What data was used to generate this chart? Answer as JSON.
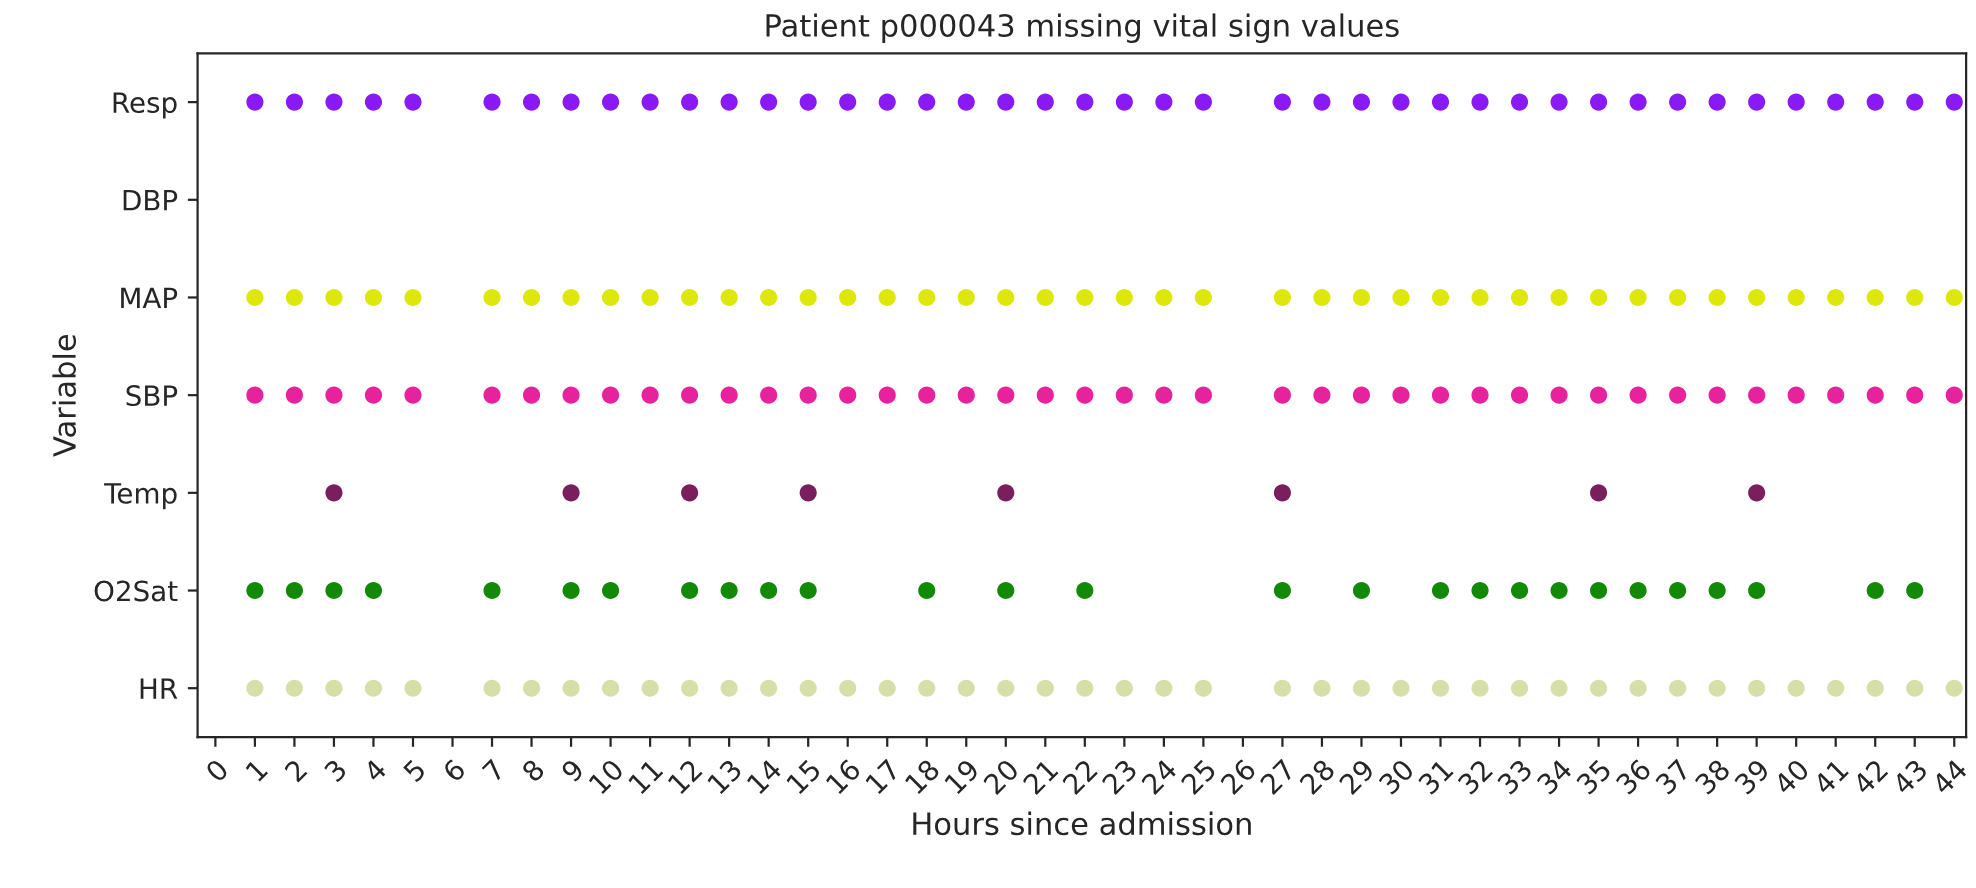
{
  "chart_data": {
    "type": "scatter",
    "orientation": "horizontal",
    "title": "Patient p000043 missing vital sign values",
    "xlabel": "Hours since admission",
    "ylabel": "Variable",
    "categories": [
      "Resp",
      "DBP",
      "MAP",
      "SBP",
      "Temp",
      "O2Sat",
      "HR"
    ],
    "series": [
      {
        "colors": [
          "#8a1af5",
          null,
          "#dde80a",
          "#e8229c",
          "#7a1f5e",
          "#138a07",
          "#d6dfa8"
        ],
        "values": [
          1,
          null,
          1,
          1,
          3,
          1,
          1
        ]
      },
      {
        "colors": [
          "#8a1af5",
          null,
          "#dde80a",
          "#e8229c",
          "#7a1f5e",
          "#138a07",
          "#d6dfa8"
        ],
        "values": [
          2,
          null,
          2,
          2,
          9,
          2,
          2
        ]
      },
      {
        "colors": [
          "#8a1af5",
          null,
          "#dde80a",
          "#e8229c",
          "#7a1f5e",
          "#138a07",
          "#d6dfa8"
        ],
        "values": [
          3,
          null,
          3,
          3,
          12,
          3,
          3
        ]
      },
      {
        "colors": [
          "#8a1af5",
          null,
          "#dde80a",
          "#e8229c",
          "#7a1f5e",
          "#138a07",
          "#d6dfa8"
        ],
        "values": [
          4,
          null,
          4,
          4,
          15,
          4,
          4
        ]
      },
      {
        "colors": [
          "#8a1af5",
          null,
          "#dde80a",
          "#e8229c",
          "#7a1f5e",
          "#138a07",
          "#d6dfa8"
        ],
        "values": [
          5,
          null,
          5,
          5,
          20,
          7,
          5
        ]
      },
      {
        "colors": [
          "#8a1af5",
          null,
          "#dde80a",
          "#e8229c",
          "#7a1f5e",
          "#138a07",
          "#d6dfa8"
        ],
        "values": [
          7,
          null,
          7,
          7,
          27,
          9,
          7
        ]
      },
      {
        "colors": [
          "#8a1af5",
          null,
          "#dde80a",
          "#e8229c",
          "#7a1f5e",
          "#138a07",
          "#d6dfa8"
        ],
        "values": [
          8,
          null,
          8,
          8,
          35,
          10,
          8
        ]
      },
      {
        "colors": [
          "#8a1af5",
          null,
          "#dde80a",
          "#e8229c",
          "#7a1f5e",
          "#138a07",
          "#d6dfa8"
        ],
        "values": [
          9,
          null,
          9,
          9,
          39,
          12,
          9
        ]
      },
      {
        "colors": [
          "#8a1af5",
          null,
          "#dde80a",
          "#e8229c",
          null,
          "#138a07",
          "#d6dfa8"
        ],
        "values": [
          10,
          null,
          10,
          10,
          null,
          13,
          10
        ]
      },
      {
        "colors": [
          "#8a1af5",
          null,
          "#dde80a",
          "#e8229c",
          null,
          "#138a07",
          "#d6dfa8"
        ],
        "values": [
          11,
          null,
          11,
          11,
          null,
          14,
          11
        ]
      },
      {
        "colors": [
          "#8a1af5",
          null,
          "#dde80a",
          "#e8229c",
          null,
          "#138a07",
          "#d6dfa8"
        ],
        "values": [
          12,
          null,
          12,
          12,
          null,
          15,
          12
        ]
      },
      {
        "colors": [
          "#8a1af5",
          null,
          "#dde80a",
          "#e8229c",
          null,
          "#138a07",
          "#d6dfa8"
        ],
        "values": [
          13,
          null,
          13,
          13,
          null,
          18,
          13
        ]
      },
      {
        "colors": [
          "#8a1af5",
          null,
          "#dde80a",
          "#e8229c",
          null,
          "#138a07",
          "#d6dfa8"
        ],
        "values": [
          14,
          null,
          14,
          14,
          null,
          20,
          14
        ]
      },
      {
        "colors": [
          "#8a1af5",
          null,
          "#dde80a",
          "#e8229c",
          null,
          "#138a07",
          "#d6dfa8"
        ],
        "values": [
          15,
          null,
          15,
          15,
          null,
          22,
          15
        ]
      },
      {
        "colors": [
          "#8a1af5",
          null,
          "#dde80a",
          "#e8229c",
          null,
          "#138a07",
          "#d6dfa8"
        ],
        "values": [
          16,
          null,
          16,
          16,
          null,
          27,
          16
        ]
      },
      {
        "colors": [
          "#8a1af5",
          null,
          "#dde80a",
          "#e8229c",
          null,
          "#138a07",
          "#d6dfa8"
        ],
        "values": [
          17,
          null,
          17,
          17,
          null,
          29,
          17
        ]
      },
      {
        "colors": [
          "#8a1af5",
          null,
          "#dde80a",
          "#e8229c",
          null,
          "#138a07",
          "#d6dfa8"
        ],
        "values": [
          18,
          null,
          18,
          18,
          null,
          31,
          18
        ]
      },
      {
        "colors": [
          "#8a1af5",
          null,
          "#dde80a",
          "#e8229c",
          null,
          "#138a07",
          "#d6dfa8"
        ],
        "values": [
          19,
          null,
          19,
          19,
          null,
          32,
          19
        ]
      },
      {
        "colors": [
          "#8a1af5",
          null,
          "#dde80a",
          "#e8229c",
          null,
          "#138a07",
          "#d6dfa8"
        ],
        "values": [
          20,
          null,
          20,
          20,
          null,
          33,
          20
        ]
      },
      {
        "colors": [
          "#8a1af5",
          null,
          "#dde80a",
          "#e8229c",
          null,
          "#138a07",
          "#d6dfa8"
        ],
        "values": [
          21,
          null,
          21,
          21,
          null,
          34,
          21
        ]
      },
      {
        "colors": [
          "#8a1af5",
          null,
          "#dde80a",
          "#e8229c",
          null,
          "#138a07",
          "#d6dfa8"
        ],
        "values": [
          22,
          null,
          22,
          22,
          null,
          35,
          22
        ]
      },
      {
        "colors": [
          "#8a1af5",
          null,
          "#dde80a",
          "#e8229c",
          null,
          "#138a07",
          "#d6dfa8"
        ],
        "values": [
          23,
          null,
          23,
          23,
          null,
          36,
          23
        ]
      },
      {
        "colors": [
          "#8a1af5",
          null,
          "#dde80a",
          "#e8229c",
          null,
          "#138a07",
          "#d6dfa8"
        ],
        "values": [
          24,
          null,
          24,
          24,
          null,
          37,
          24
        ]
      },
      {
        "colors": [
          "#8a1af5",
          null,
          "#dde80a",
          "#e8229c",
          null,
          "#138a07",
          "#d6dfa8"
        ],
        "values": [
          25,
          null,
          25,
          25,
          null,
          38,
          25
        ]
      },
      {
        "colors": [
          "#8a1af5",
          null,
          "#dde80a",
          "#e8229c",
          null,
          "#138a07",
          "#d6dfa8"
        ],
        "values": [
          27,
          null,
          27,
          27,
          null,
          39,
          27
        ]
      },
      {
        "colors": [
          "#8a1af5",
          null,
          "#dde80a",
          "#e8229c",
          null,
          "#138a07",
          "#d6dfa8"
        ],
        "values": [
          28,
          null,
          28,
          28,
          null,
          42,
          28
        ]
      },
      {
        "colors": [
          "#8a1af5",
          null,
          "#dde80a",
          "#e8229c",
          null,
          "#138a07",
          "#d6dfa8"
        ],
        "values": [
          29,
          null,
          29,
          29,
          null,
          43,
          29
        ]
      },
      {
        "colors": [
          "#8a1af5",
          null,
          "#dde80a",
          "#e8229c",
          null,
          null,
          "#d6dfa8"
        ],
        "values": [
          30,
          null,
          30,
          30,
          null,
          null,
          30
        ]
      },
      {
        "colors": [
          "#8a1af5",
          null,
          "#dde80a",
          "#e8229c",
          null,
          null,
          "#d6dfa8"
        ],
        "values": [
          31,
          null,
          31,
          31,
          null,
          null,
          31
        ]
      },
      {
        "colors": [
          "#8a1af5",
          null,
          "#dde80a",
          "#e8229c",
          null,
          null,
          "#d6dfa8"
        ],
        "values": [
          32,
          null,
          32,
          32,
          null,
          null,
          32
        ]
      },
      {
        "colors": [
          "#8a1af5",
          null,
          "#dde80a",
          "#e8229c",
          null,
          null,
          "#d6dfa8"
        ],
        "values": [
          33,
          null,
          33,
          33,
          null,
          null,
          33
        ]
      },
      {
        "colors": [
          "#8a1af5",
          null,
          "#dde80a",
          "#e8229c",
          null,
          null,
          "#d6dfa8"
        ],
        "values": [
          34,
          null,
          34,
          34,
          null,
          null,
          34
        ]
      },
      {
        "colors": [
          "#8a1af5",
          null,
          "#dde80a",
          "#e8229c",
          null,
          null,
          "#d6dfa8"
        ],
        "values": [
          35,
          null,
          35,
          35,
          null,
          null,
          35
        ]
      },
      {
        "colors": [
          "#8a1af5",
          null,
          "#dde80a",
          "#e8229c",
          null,
          null,
          "#d6dfa8"
        ],
        "values": [
          36,
          null,
          36,
          36,
          null,
          null,
          36
        ]
      },
      {
        "colors": [
          "#8a1af5",
          null,
          "#dde80a",
          "#e8229c",
          null,
          null,
          "#d6dfa8"
        ],
        "values": [
          37,
          null,
          37,
          37,
          null,
          null,
          37
        ]
      },
      {
        "colors": [
          "#8a1af5",
          null,
          "#dde80a",
          "#e8229c",
          null,
          null,
          "#d6dfa8"
        ],
        "values": [
          38,
          null,
          38,
          38,
          null,
          null,
          38
        ]
      },
      {
        "colors": [
          "#8a1af5",
          null,
          "#dde80a",
          "#e8229c",
          null,
          null,
          "#d6dfa8"
        ],
        "values": [
          39,
          null,
          39,
          39,
          null,
          null,
          39
        ]
      },
      {
        "colors": [
          "#8a1af5",
          null,
          "#dde80a",
          "#e8229c",
          null,
          null,
          "#d6dfa8"
        ],
        "values": [
          40,
          null,
          40,
          40,
          null,
          null,
          40
        ]
      },
      {
        "colors": [
          "#8a1af5",
          null,
          "#dde80a",
          "#e8229c",
          null,
          null,
          "#d6dfa8"
        ],
        "values": [
          41,
          null,
          41,
          41,
          null,
          null,
          41
        ]
      },
      {
        "colors": [
          "#8a1af5",
          null,
          "#dde80a",
          "#e8229c",
          null,
          null,
          "#d6dfa8"
        ],
        "values": [
          42,
          null,
          42,
          42,
          null,
          null,
          42
        ]
      },
      {
        "colors": [
          "#8a1af5",
          null,
          "#dde80a",
          "#e8229c",
          null,
          null,
          "#d6dfa8"
        ],
        "values": [
          43,
          null,
          43,
          43,
          null,
          null,
          43
        ]
      },
      {
        "colors": [
          "#8a1af5",
          null,
          "#dde80a",
          "#e8229c",
          null,
          null,
          "#d6dfa8"
        ],
        "values": [
          44,
          null,
          44,
          44,
          null,
          null,
          44
        ]
      }
    ],
    "xlim": [
      -0.45,
      44.3
    ],
    "xticks": [
      0,
      1,
      2,
      3,
      4,
      5,
      6,
      7,
      8,
      9,
      10,
      11,
      12,
      13,
      14,
      15,
      16,
      17,
      18,
      19,
      20,
      21,
      22,
      23,
      24,
      25,
      26,
      27,
      28,
      29,
      30,
      31,
      32,
      33,
      34,
      35,
      36,
      37,
      38,
      39,
      40,
      41,
      42,
      43,
      44
    ],
    "marker": "circle",
    "grid": false,
    "legend": false
  }
}
